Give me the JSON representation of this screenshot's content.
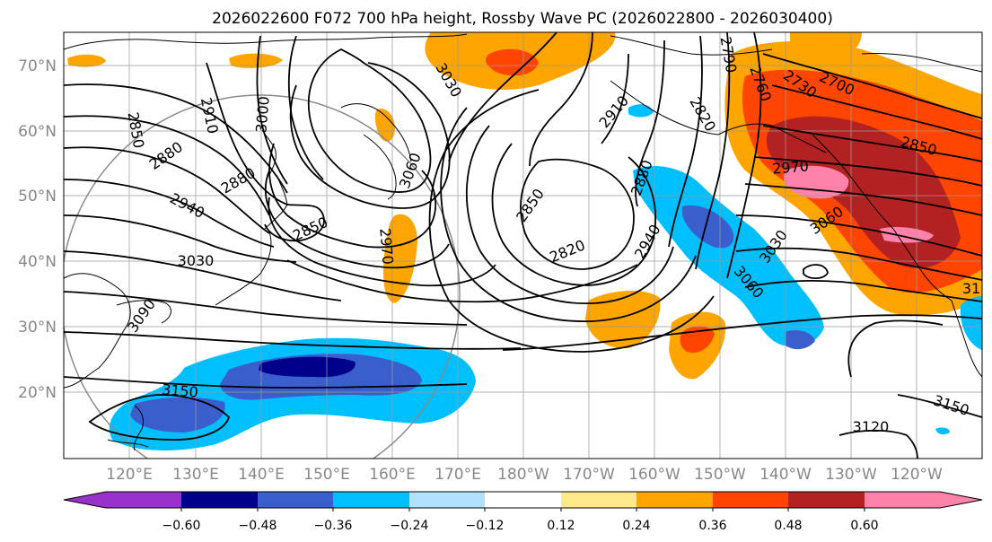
{
  "figure": {
    "title": "2026022600 F072 700 hPa height, Rossby Wave PC (2026022800 - 2026030400)"
  },
  "map": {
    "projection": "plate-carree",
    "lon_range": [
      110,
      253
    ],
    "lat_range": [
      10,
      75
    ],
    "latitude_labels": [
      "70°N",
      "60°N",
      "50°N",
      "40°N",
      "30°N",
      "20°N"
    ],
    "longitude_labels": [
      "120°E",
      "130°E",
      "140°E",
      "150°E",
      "160°E",
      "170°E",
      "180°W",
      "170°W",
      "160°W",
      "150°W",
      "140°W",
      "130°W",
      "120°W"
    ],
    "grid": true,
    "reference_circle": true,
    "contour_field": "700 hPa height",
    "contour_labels": [
      "2850",
      "2910",
      "3000",
      "3030",
      "2880",
      "2880",
      "2940",
      "3030",
      "3060",
      "3090",
      "2850",
      "2970",
      "3150",
      "2850",
      "2820",
      "2940",
      "2880",
      "2910",
      "3030",
      "3060",
      "3060",
      "2970",
      "2850",
      "2820",
      "2730",
      "2700",
      "2760",
      "2790",
      "3120",
      "3150",
      "31"
    ],
    "shading_field": "Rossby Wave PC"
  },
  "colorbar": {
    "tick_labels": [
      "−0.60",
      "−0.48",
      "−0.36",
      "−0.24",
      "−0.12",
      "0.12",
      "0.24",
      "0.36",
      "0.48",
      "0.60"
    ],
    "colors": [
      "#9932cc",
      "#00008b",
      "#3a5fcd",
      "#00bfff",
      "#b0e2ff",
      "#ffffff",
      "#ffe98a",
      "#ffa500",
      "#ff4500",
      "#b22222",
      "#ff82ab"
    ]
  }
}
